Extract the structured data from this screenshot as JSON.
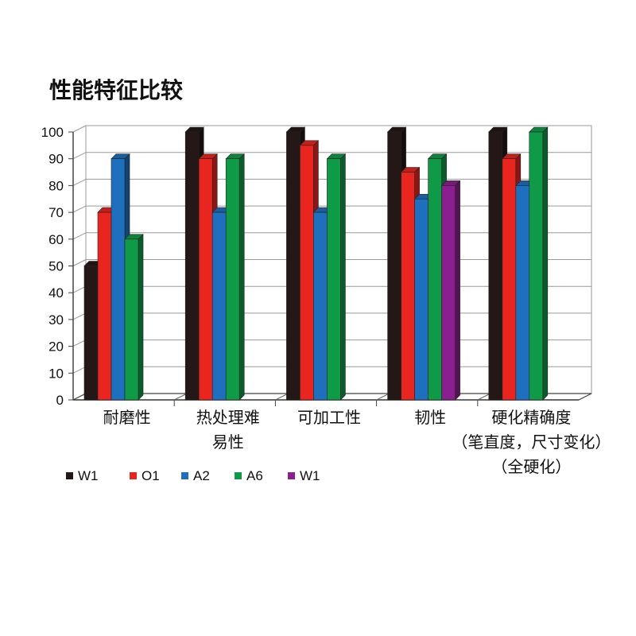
{
  "title": "性能特征比较",
  "chart_data": {
    "type": "bar",
    "title": "性能特征比较",
    "categories": [
      [
        "耐磨性"
      ],
      [
        "热处理难",
        "易性"
      ],
      [
        "可加工性"
      ],
      [
        "韧性"
      ],
      [
        "硬化精确度",
        "（笔直度，尺寸变化）",
        "（全硬化）"
      ]
    ],
    "series": [
      {
        "name": "W1",
        "color": "#231815",
        "values": [
          50,
          100,
          100,
          100,
          100
        ]
      },
      {
        "name": "O1",
        "color": "#e8251f",
        "values": [
          70,
          90,
          95,
          85,
          90
        ]
      },
      {
        "name": "A2",
        "color": "#1f6fbf",
        "values": [
          90,
          70,
          70,
          75,
          80
        ]
      },
      {
        "name": "A6",
        "color": "#0f9a47",
        "values": [
          60,
          90,
          90,
          90,
          100
        ]
      },
      {
        "name": "W1",
        "color": "#8a1f8e",
        "values": [
          null,
          null,
          null,
          80,
          null
        ]
      }
    ],
    "ylim": [
      0,
      100
    ],
    "yticks": [
      0,
      10,
      20,
      30,
      40,
      50,
      60,
      70,
      80,
      90,
      100
    ],
    "grid": true,
    "legend_position": "bottom-left"
  }
}
